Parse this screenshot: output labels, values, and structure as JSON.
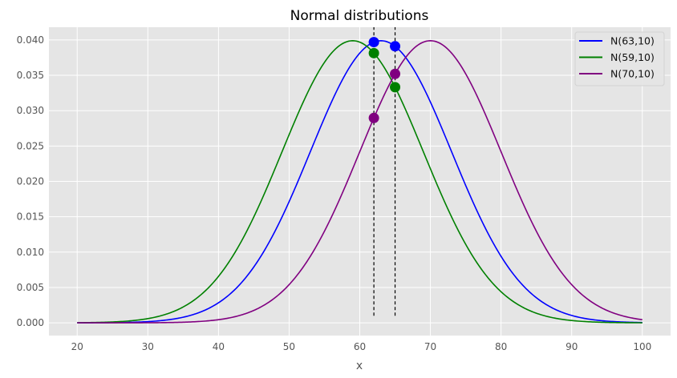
{
  "chart_data": {
    "type": "line",
    "title": "Normal distributions",
    "xlabel": "x",
    "ylabel": "",
    "xlim": [
      16,
      104
    ],
    "ylim": [
      -0.0018,
      0.0418
    ],
    "xticks": [
      20,
      30,
      40,
      50,
      60,
      70,
      80,
      90,
      100
    ],
    "xtick_labels": [
      "20",
      "30",
      "40",
      "50",
      "60",
      "70",
      "80",
      "90",
      "100"
    ],
    "yticks": [
      0,
      0.005,
      0.01,
      0.015,
      0.02,
      0.025,
      0.03,
      0.035,
      0.04
    ],
    "ytick_labels": [
      "0.000",
      "0.005",
      "0.010",
      "0.015",
      "0.020",
      "0.025",
      "0.030",
      "0.035",
      "0.040"
    ],
    "grid": true,
    "legend_position": "top-right",
    "x_range": [
      20,
      100
    ],
    "series": [
      {
        "name": "N(63,10)",
        "mean": 63,
        "sd": 10,
        "color": "#0000ff"
      },
      {
        "name": "N(59,10)",
        "mean": 59,
        "sd": 10,
        "color": "#008000"
      },
      {
        "name": "N(70,10)",
        "mean": 70,
        "sd": 10,
        "color": "#800080"
      }
    ],
    "vlines": [
      {
        "x": 62,
        "ymin": 0.001,
        "ymax": 0.0418
      },
      {
        "x": 65,
        "ymin": 0.001,
        "ymax": 0.0418
      }
    ],
    "marked_points_x": [
      62,
      65
    ]
  }
}
